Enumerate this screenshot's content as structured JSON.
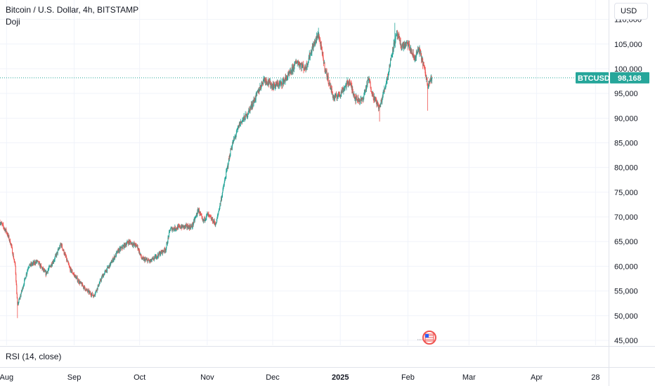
{
  "header": {
    "title": "Bitcoin / U.S. Dollar, 4h, BITSTAMP",
    "pattern_label": "Doji"
  },
  "currency_button": {
    "label": "USD"
  },
  "price_tag": {
    "symbol": "BTCUSD",
    "price": "98,168"
  },
  "indicator_pane": {
    "label": "RSI (14, close)"
  },
  "colors": {
    "up": "#26a69a",
    "down": "#ef5350",
    "grid": "#f0f3fa",
    "axis_text": "#131722",
    "price_line": "#26a69a"
  },
  "chart_data": {
    "type": "candlestick",
    "title": "Bitcoin / U.S. Dollar, 4h, BITSTAMP",
    "y_ticks": [
      "45,000",
      "50,000",
      "55,000",
      "60,000",
      "65,000",
      "70,000",
      "75,000",
      "80,000",
      "85,000",
      "90,000",
      "95,000",
      "100,000",
      "105,000",
      "110,000"
    ],
    "y_tick_values": [
      45000,
      50000,
      55000,
      60000,
      65000,
      70000,
      75000,
      80000,
      85000,
      90000,
      95000,
      100000,
      105000,
      110000
    ],
    "ylim": [
      44000,
      112500
    ],
    "x_ticks": [
      "Aug",
      "Sep",
      "Oct",
      "Nov",
      "Dec",
      "2025",
      "Feb",
      "Mar",
      "Apr",
      "28"
    ],
    "x_tick_days": [
      0,
      31,
      61,
      92,
      122,
      153,
      184,
      212,
      243,
      270
    ],
    "xlim_days": [
      -3,
      276
    ],
    "last_price": 98168,
    "series_control_points": [
      {
        "day": -3,
        "price": 69000
      },
      {
        "day": 0,
        "price": 67000
      },
      {
        "day": 2,
        "price": 64500
      },
      {
        "day": 4,
        "price": 60000
      },
      {
        "day": 5,
        "price": 52000
      },
      {
        "day": 7,
        "price": 55000
      },
      {
        "day": 10,
        "price": 60000
      },
      {
        "day": 14,
        "price": 61000
      },
      {
        "day": 18,
        "price": 58500
      },
      {
        "day": 22,
        "price": 61500
      },
      {
        "day": 25,
        "price": 64500
      },
      {
        "day": 29,
        "price": 59500
      },
      {
        "day": 33,
        "price": 57000
      },
      {
        "day": 37,
        "price": 55000
      },
      {
        "day": 40,
        "price": 54000
      },
      {
        "day": 44,
        "price": 58000
      },
      {
        "day": 47,
        "price": 60000
      },
      {
        "day": 51,
        "price": 63000
      },
      {
        "day": 56,
        "price": 65000
      },
      {
        "day": 60,
        "price": 64000
      },
      {
        "day": 62,
        "price": 61500
      },
      {
        "day": 66,
        "price": 61000
      },
      {
        "day": 70,
        "price": 62500
      },
      {
        "day": 73,
        "price": 63500
      },
      {
        "day": 75,
        "price": 67500
      },
      {
        "day": 80,
        "price": 68000
      },
      {
        "day": 85,
        "price": 68000
      },
      {
        "day": 88,
        "price": 71500
      },
      {
        "day": 90,
        "price": 69000
      },
      {
        "day": 92,
        "price": 70500
      },
      {
        "day": 96,
        "price": 68500
      },
      {
        "day": 99,
        "price": 75000
      },
      {
        "day": 103,
        "price": 84000
      },
      {
        "day": 107,
        "price": 89000
      },
      {
        "day": 110,
        "price": 90500
      },
      {
        "day": 114,
        "price": 94000
      },
      {
        "day": 118,
        "price": 98000
      },
      {
        "day": 122,
        "price": 96500
      },
      {
        "day": 126,
        "price": 97000
      },
      {
        "day": 130,
        "price": 99000
      },
      {
        "day": 133,
        "price": 101500
      },
      {
        "day": 137,
        "price": 100000
      },
      {
        "day": 140,
        "price": 104000
      },
      {
        "day": 143,
        "price": 107000
      },
      {
        "day": 146,
        "price": 100000
      },
      {
        "day": 150,
        "price": 94000
      },
      {
        "day": 153,
        "price": 95000
      },
      {
        "day": 157,
        "price": 97500
      },
      {
        "day": 160,
        "price": 94000
      },
      {
        "day": 163,
        "price": 93500
      },
      {
        "day": 166,
        "price": 98000
      },
      {
        "day": 168,
        "price": 94500
      },
      {
        "day": 171,
        "price": 92000
      },
      {
        "day": 175,
        "price": 99000
      },
      {
        "day": 177,
        "price": 104000
      },
      {
        "day": 179,
        "price": 107000
      },
      {
        "day": 181,
        "price": 104500
      },
      {
        "day": 184,
        "price": 105000
      },
      {
        "day": 187,
        "price": 102000
      },
      {
        "day": 189,
        "price": 104000
      },
      {
        "day": 191,
        "price": 101000
      },
      {
        "day": 193,
        "price": 97000
      },
      {
        "day": 195,
        "price": 98168
      }
    ],
    "extremes": [
      {
        "day": 5,
        "price": 49500,
        "kind": "low"
      },
      {
        "day": 143,
        "price": 108300,
        "kind": "high"
      },
      {
        "day": 178,
        "price": 109300,
        "kind": "high"
      },
      {
        "day": 193,
        "price": 91500,
        "kind": "low"
      },
      {
        "day": 171,
        "price": 89300,
        "kind": "low"
      }
    ],
    "candle_hours": 4
  }
}
